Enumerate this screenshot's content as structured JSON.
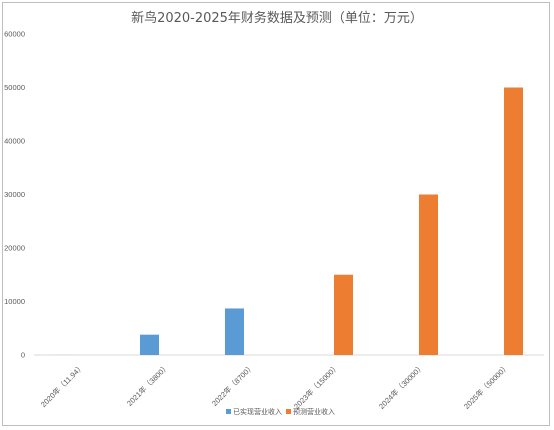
{
  "chart_data": {
    "type": "bar",
    "title": "新鸟2020-2025年财务数据及预测（单位：万元）",
    "categories": [
      "2020年（11.94）",
      "2021年（3800）",
      "2022年（8700）",
      "2023年（15000）",
      "2024年（30000）",
      "2025年（50000）"
    ],
    "series": [
      {
        "name": "已实现营业收入",
        "color": "#5b9bd5",
        "values": [
          11.94,
          3800,
          8700,
          null,
          null,
          null
        ]
      },
      {
        "name": "预测营业收入",
        "color": "#ed7d31",
        "values": [
          null,
          null,
          null,
          15000,
          30000,
          50000
        ]
      }
    ],
    "ylim": [
      0,
      60000
    ],
    "yticks": [
      0,
      10000,
      20000,
      30000,
      40000,
      50000,
      60000
    ],
    "grid": false,
    "legend": "bottom"
  }
}
